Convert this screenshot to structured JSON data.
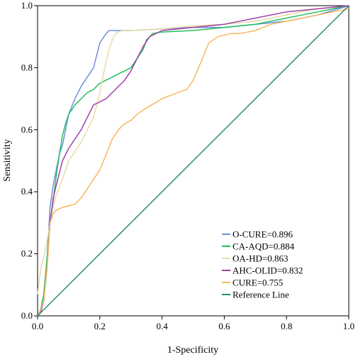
{
  "chart_data": {
    "type": "line",
    "title": "",
    "xlabel": "1-Specificity",
    "ylabel": "Sensitivity",
    "xlim": [
      0,
      1
    ],
    "ylim": [
      0,
      1
    ],
    "xticks": [
      "0.0",
      "0.2",
      "0.4",
      "0.6",
      "0.8",
      "1.0"
    ],
    "yticks": [
      "0.0",
      "0.2",
      "0.4",
      "0.6",
      "0.8",
      "1.0"
    ],
    "grid": false,
    "legend_position": "bottom-right",
    "series": [
      {
        "name": "O-CURE=0.896",
        "color": "#6f8fd8",
        "x": [
          0,
          0.01,
          0.02,
          0.03,
          0.04,
          0.05,
          0.06,
          0.07,
          0.08,
          0.09,
          0.1,
          0.12,
          0.14,
          0.16,
          0.18,
          0.19,
          0.2,
          0.22,
          0.23,
          0.24,
          0.3,
          0.4,
          0.5,
          0.6,
          0.7,
          0.8,
          0.9,
          0.95,
          1
        ],
        "y": [
          0,
          0.02,
          0.07,
          0.18,
          0.35,
          0.42,
          0.47,
          0.52,
          0.55,
          0.6,
          0.65,
          0.7,
          0.74,
          0.77,
          0.8,
          0.84,
          0.88,
          0.91,
          0.92,
          0.92,
          0.92,
          0.925,
          0.93,
          0.93,
          0.94,
          0.95,
          0.97,
          0.985,
          1
        ]
      },
      {
        "name": "CA-AQD=0.884",
        "color": "#20c060",
        "x": [
          0,
          0.01,
          0.02,
          0.03,
          0.04,
          0.05,
          0.06,
          0.07,
          0.08,
          0.09,
          0.1,
          0.12,
          0.14,
          0.16,
          0.18,
          0.2,
          0.22,
          0.24,
          0.26,
          0.28,
          0.3,
          0.32,
          0.34,
          0.35,
          0.37,
          0.4,
          0.5,
          0.6,
          0.7,
          0.8,
          0.9,
          0.95,
          1
        ],
        "y": [
          0,
          0.02,
          0.07,
          0.18,
          0.3,
          0.37,
          0.45,
          0.52,
          0.58,
          0.62,
          0.65,
          0.68,
          0.7,
          0.72,
          0.73,
          0.75,
          0.76,
          0.77,
          0.78,
          0.79,
          0.8,
          0.83,
          0.86,
          0.89,
          0.91,
          0.915,
          0.92,
          0.93,
          0.94,
          0.96,
          0.98,
          0.99,
          1
        ]
      },
      {
        "name": "OA-HD=0.863",
        "color": "#e6dca8",
        "x": [
          0,
          0.01,
          0.02,
          0.03,
          0.04,
          0.05,
          0.06,
          0.08,
          0.1,
          0.12,
          0.14,
          0.16,
          0.18,
          0.2,
          0.22,
          0.23,
          0.24,
          0.25,
          0.27,
          0.3,
          0.4,
          0.5,
          0.6,
          0.7,
          0.8,
          0.9,
          1
        ],
        "y": [
          0.07,
          0.15,
          0.19,
          0.24,
          0.3,
          0.35,
          0.39,
          0.44,
          0.5,
          0.53,
          0.56,
          0.6,
          0.64,
          0.72,
          0.82,
          0.86,
          0.89,
          0.91,
          0.92,
          0.92,
          0.925,
          0.935,
          0.94,
          0.95,
          0.97,
          0.99,
          1
        ]
      },
      {
        "name": "AHC-OLID=0.832",
        "color": "#a040a8",
        "x": [
          0,
          0.01,
          0.02,
          0.03,
          0.04,
          0.05,
          0.06,
          0.07,
          0.08,
          0.1,
          0.12,
          0.14,
          0.16,
          0.18,
          0.2,
          0.22,
          0.24,
          0.26,
          0.28,
          0.3,
          0.32,
          0.34,
          0.36,
          0.4,
          0.5,
          0.6,
          0.7,
          0.8,
          0.9,
          1
        ],
        "y": [
          0,
          0.01,
          0.05,
          0.15,
          0.3,
          0.38,
          0.42,
          0.46,
          0.5,
          0.54,
          0.57,
          0.6,
          0.64,
          0.68,
          0.69,
          0.7,
          0.72,
          0.74,
          0.76,
          0.79,
          0.83,
          0.87,
          0.9,
          0.92,
          0.93,
          0.94,
          0.96,
          0.98,
          0.99,
          1
        ]
      },
      {
        "name": "CURE=0.755",
        "color": "#f7b85e",
        "x": [
          0,
          0.01,
          0.02,
          0.03,
          0.04,
          0.05,
          0.06,
          0.08,
          0.1,
          0.12,
          0.14,
          0.16,
          0.18,
          0.2,
          0.22,
          0.24,
          0.26,
          0.28,
          0.3,
          0.32,
          0.35,
          0.4,
          0.45,
          0.48,
          0.5,
          0.53,
          0.55,
          0.58,
          0.62,
          0.65,
          0.7,
          0.75,
          0.8,
          0.85,
          0.9,
          0.95,
          1
        ],
        "y": [
          0,
          0.02,
          0.05,
          0.15,
          0.3,
          0.33,
          0.34,
          0.35,
          0.355,
          0.36,
          0.38,
          0.41,
          0.44,
          0.47,
          0.52,
          0.57,
          0.6,
          0.62,
          0.63,
          0.65,
          0.67,
          0.7,
          0.72,
          0.73,
          0.76,
          0.83,
          0.88,
          0.9,
          0.91,
          0.91,
          0.92,
          0.94,
          0.95,
          0.96,
          0.97,
          0.98,
          0.99
        ]
      },
      {
        "name": "Reference Line",
        "color": "#2e8b6e",
        "x": [
          0,
          1
        ],
        "y": [
          0,
          1
        ]
      }
    ]
  }
}
